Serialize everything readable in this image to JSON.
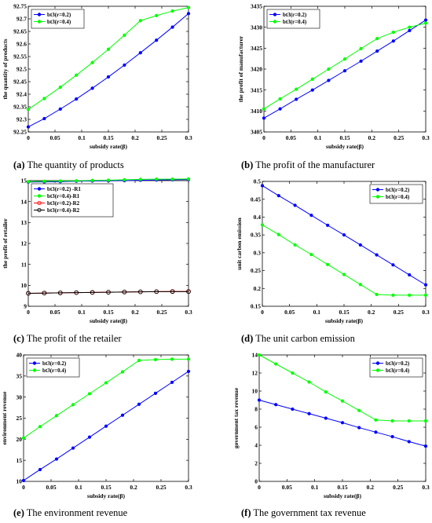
{
  "figure": {
    "captions": [
      {
        "letter": "(a)",
        "text": "The quantity of products"
      },
      {
        "letter": "(b)",
        "text": "The profit of the manufacturer"
      },
      {
        "letter": "(c)",
        "text": "The profit of the retailer"
      },
      {
        "letter": "(d)",
        "text": "The unit carbon emission"
      },
      {
        "letter": "(e)",
        "text": "The environment revenue"
      },
      {
        "letter": "(f)",
        "text": "The government tax revenue"
      }
    ]
  },
  "colors": {
    "blue": "#0000ff",
    "green": "#00ff00",
    "red": "#ff0000",
    "black": "#000000"
  },
  "chart_data": [
    {
      "type": "line",
      "xlabel": "subsidy rate(β)",
      "ylabel": "the quantity of products",
      "xlim": [
        0,
        0.3
      ],
      "ylim": [
        92.25,
        92.75
      ],
      "xticks": [
        0,
        0.05,
        0.1,
        0.15,
        0.2,
        0.25,
        0.3
      ],
      "xtick_labels": [
        "0",
        "0.05",
        "0.1",
        "0.15",
        "0.2",
        "0.25",
        "0.3"
      ],
      "yticks": [
        92.25,
        92.3,
        92.35,
        92.4,
        92.45,
        92.5,
        92.55,
        92.6,
        92.65,
        92.7,
        92.75
      ],
      "ytick_labels": [
        "92.25",
        "92.3",
        "92.35",
        "92.4",
        "92.45",
        "92.5",
        "92.55",
        "92.6",
        "92.65",
        "92.7",
        "92.75"
      ],
      "legend_position": "top-left",
      "x": [
        0,
        0.03,
        0.06,
        0.09,
        0.12,
        0.15,
        0.18,
        0.21,
        0.24,
        0.27,
        0.3
      ],
      "series": [
        {
          "name": "bt3(r=0.2)",
          "color": "#0000ff",
          "marker": "filled-dot",
          "values": [
            92.27,
            92.303,
            92.341,
            92.381,
            92.424,
            92.469,
            92.516,
            92.565,
            92.615,
            92.667,
            92.721
          ]
        },
        {
          "name": "bt3(r=0.4)",
          "color": "#00ff00",
          "marker": "filled-dot",
          "values": [
            92.34,
            92.383,
            92.428,
            92.476,
            92.526,
            92.579,
            92.635,
            92.693,
            92.713,
            92.731,
            92.745
          ]
        }
      ]
    },
    {
      "type": "line",
      "xlabel": "subsidy rate(β)",
      "ylabel": "the profit of manufacturer",
      "xlim": [
        0,
        0.3
      ],
      "ylim": [
        3405,
        3435
      ],
      "xticks": [
        0,
        0.05,
        0.1,
        0.15,
        0.2,
        0.25,
        0.3
      ],
      "xtick_labels": [
        "0",
        "0.05",
        "0.1",
        "0.15",
        "0.2",
        "0.25",
        "0.3"
      ],
      "yticks": [
        3405,
        3410,
        3415,
        3420,
        3425,
        3430,
        3435
      ],
      "ytick_labels": [
        "3405",
        "3410",
        "3415",
        "3420",
        "3425",
        "3430",
        "3435"
      ],
      "legend_position": "top-left",
      "x": [
        0,
        0.03,
        0.06,
        0.09,
        0.12,
        0.15,
        0.18,
        0.21,
        0.24,
        0.27,
        0.3
      ],
      "series": [
        {
          "name": "bt3(r=0.2)",
          "color": "#0000ff",
          "marker": "filled-dot",
          "values": [
            3408.3,
            3410.5,
            3412.8,
            3415.0,
            3417.3,
            3419.6,
            3421.9,
            3424.3,
            3426.7,
            3429.2,
            3431.7
          ]
        },
        {
          "name": "bt3(r=0.4)",
          "color": "#00ff00",
          "marker": "filled-dot",
          "values": [
            3410.5,
            3412.9,
            3415.2,
            3417.6,
            3420.0,
            3422.4,
            3424.9,
            3427.3,
            3428.8,
            3430.0,
            3431.0
          ]
        }
      ]
    },
    {
      "type": "line",
      "xlabel": "subsidy rate(β)",
      "ylabel": "the profit of retailer",
      "xlim": [
        0,
        0.3
      ],
      "ylim": [
        9,
        15
      ],
      "xticks": [
        0,
        0.05,
        0.1,
        0.15,
        0.2,
        0.25,
        0.3
      ],
      "xtick_labels": [
        "0",
        "0.05",
        "0.1",
        "0.15",
        "0.2",
        "0.25",
        "0.3"
      ],
      "yticks": [
        9,
        10,
        11,
        12,
        13,
        14,
        15
      ],
      "ytick_labels": [
        "9",
        "10",
        "11",
        "12",
        "13",
        "14",
        "15"
      ],
      "legend_position": "top-left",
      "x": [
        0,
        0.03,
        0.06,
        0.09,
        0.12,
        0.15,
        0.18,
        0.21,
        0.24,
        0.27,
        0.3
      ],
      "series": [
        {
          "name": "bt3(r=0.2) -R1",
          "color": "#0000ff",
          "marker": "filled-dot",
          "values": [
            14.93,
            14.94,
            14.95,
            14.97,
            14.98,
            14.99,
            15.0,
            15.02,
            15.03,
            15.04,
            15.05
          ]
        },
        {
          "name": "bt3(r=0.4)-R1",
          "color": "#00ff00",
          "marker": "filled-dot",
          "values": [
            14.95,
            14.97,
            14.98,
            14.99,
            15.01,
            15.02,
            15.04,
            15.06,
            15.07,
            15.07,
            15.08
          ]
        },
        {
          "name": "bt3(r=0.2)-R2",
          "color": "#ff0000",
          "marker": "open-circle",
          "values": [
            9.62,
            9.63,
            9.64,
            9.65,
            9.66,
            9.67,
            9.68,
            9.69,
            9.7,
            9.71,
            9.71
          ]
        },
        {
          "name": "bt3(r=0.4)-R2",
          "color": "#000000",
          "marker": "open-circle",
          "values": [
            9.62,
            9.63,
            9.64,
            9.65,
            9.66,
            9.67,
            9.68,
            9.69,
            9.7,
            9.7,
            9.7
          ]
        }
      ]
    },
    {
      "type": "line",
      "xlabel": "subsidy rate(β)",
      "ylabel": "unit carbon emission",
      "xlim": [
        0,
        0.3
      ],
      "ylim": [
        0.15,
        0.5
      ],
      "xticks": [
        0,
        0.05,
        0.1,
        0.15,
        0.2,
        0.25,
        0.3
      ],
      "xtick_labels": [
        "0",
        "0.05",
        "0.1",
        "0.15",
        "0.2",
        "0.25",
        "0.3"
      ],
      "yticks": [
        0.15,
        0.2,
        0.25,
        0.3,
        0.35,
        0.4,
        0.45,
        0.5
      ],
      "ytick_labels": [
        "0.15",
        "0.2",
        "0.25",
        "0.3",
        "0.35",
        "0.4",
        "0.45",
        "0.5"
      ],
      "legend_position": "top-right",
      "x": [
        0,
        0.03,
        0.06,
        0.09,
        0.12,
        0.15,
        0.18,
        0.21,
        0.24,
        0.27,
        0.3
      ],
      "series": [
        {
          "name": "bt3(r=0.2)",
          "color": "#0000ff",
          "marker": "filled-dot",
          "values": [
            0.488,
            0.46,
            0.433,
            0.405,
            0.377,
            0.35,
            0.322,
            0.294,
            0.266,
            0.238,
            0.21
          ]
        },
        {
          "name": "bt3(r=0.4)",
          "color": "#00ff00",
          "marker": "filled-dot",
          "values": [
            0.378,
            0.351,
            0.322,
            0.295,
            0.267,
            0.239,
            0.211,
            0.183,
            0.181,
            0.181,
            0.181
          ]
        }
      ]
    },
    {
      "type": "line",
      "xlabel": "subsidy rate(β)",
      "ylabel": "environment revenue",
      "xlim": [
        0,
        0.3
      ],
      "ylim": [
        10,
        40
      ],
      "xticks": [
        0,
        0.05,
        0.1,
        0.15,
        0.2,
        0.25,
        0.3
      ],
      "xtick_labels": [
        "0",
        "0.05",
        "0.1",
        "0.15",
        "0.2",
        "0.25",
        "0.3"
      ],
      "yticks": [
        10,
        15,
        20,
        25,
        30,
        35,
        40
      ],
      "ytick_labels": [
        "10",
        "15",
        "20",
        "25",
        "30",
        "35",
        "40"
      ],
      "legend_position": "top-left",
      "x": [
        0,
        0.03,
        0.06,
        0.09,
        0.12,
        0.15,
        0.18,
        0.21,
        0.24,
        0.27,
        0.3
      ],
      "series": [
        {
          "name": "bt3(r=0.2)",
          "color": "#0000ff",
          "marker": "filled-dot",
          "values": [
            10.2,
            12.8,
            15.3,
            17.9,
            20.5,
            23.1,
            25.7,
            28.3,
            30.9,
            33.5,
            36.1
          ]
        },
        {
          "name": "bt3(r=0.4)",
          "color": "#00ff00",
          "marker": "filled-dot",
          "values": [
            20.3,
            23.0,
            25.6,
            28.2,
            30.8,
            33.4,
            36.0,
            38.7,
            38.9,
            39.0,
            39.0
          ]
        }
      ]
    },
    {
      "type": "line",
      "xlabel": "subsidy rate(β)",
      "ylabel": "government tax revenue",
      "xlim": [
        0,
        0.3
      ],
      "ylim": [
        0,
        14
      ],
      "xticks": [
        0,
        0.05,
        0.1,
        0.15,
        0.2,
        0.25,
        0.3
      ],
      "xtick_labels": [
        "0",
        "0.05",
        "0.1",
        "0.15",
        "0.2",
        "0.25",
        "0.3"
      ],
      "yticks": [
        0,
        2,
        4,
        6,
        8,
        10,
        12,
        14
      ],
      "ytick_labels": [
        "0",
        "2",
        "4",
        "6",
        "8",
        "10",
        "12",
        "14"
      ],
      "legend_position": "top-right",
      "x": [
        0,
        0.03,
        0.06,
        0.09,
        0.12,
        0.15,
        0.18,
        0.21,
        0.24,
        0.27,
        0.3
      ],
      "series": [
        {
          "name": "bt3(r=0.2)",
          "color": "#0000ff",
          "marker": "filled-dot",
          "values": [
            9.0,
            8.5,
            8.0,
            7.5,
            7.0,
            6.5,
            5.95,
            5.45,
            4.95,
            4.4,
            3.9
          ]
        },
        {
          "name": "bt3(r=0.4)",
          "color": "#00ff00",
          "marker": "filled-dot",
          "values": [
            14.0,
            13.0,
            12.0,
            11.0,
            9.9,
            8.9,
            7.85,
            6.8,
            6.7,
            6.7,
            6.7
          ]
        }
      ]
    }
  ]
}
